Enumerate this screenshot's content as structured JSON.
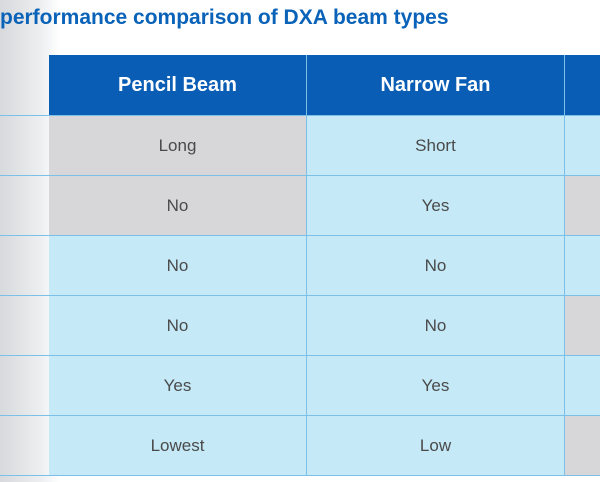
{
  "title": "performance comparison of DXA beam types",
  "columns": [
    "Pencil Beam",
    "Narrow Fan",
    ""
  ],
  "rows": [
    {
      "values": [
        "Long",
        "Short",
        ""
      ],
      "shades": [
        "grey",
        "blue",
        "blue"
      ]
    },
    {
      "values": [
        "No",
        "Yes",
        ""
      ],
      "shades": [
        "grey",
        "blue",
        "grey"
      ]
    },
    {
      "values": [
        "No",
        "No",
        ""
      ],
      "shades": [
        "blue",
        "blue",
        "blue"
      ]
    },
    {
      "values": [
        "No",
        "No",
        ""
      ],
      "shades": [
        "blue",
        "blue",
        "grey"
      ]
    },
    {
      "values": [
        "Yes",
        "Yes",
        ""
      ],
      "shades": [
        "blue",
        "blue",
        "blue"
      ]
    },
    {
      "values": [
        "Lowest",
        "Low",
        ""
      ],
      "shades": [
        "blue",
        "blue",
        "grey"
      ]
    }
  ]
}
